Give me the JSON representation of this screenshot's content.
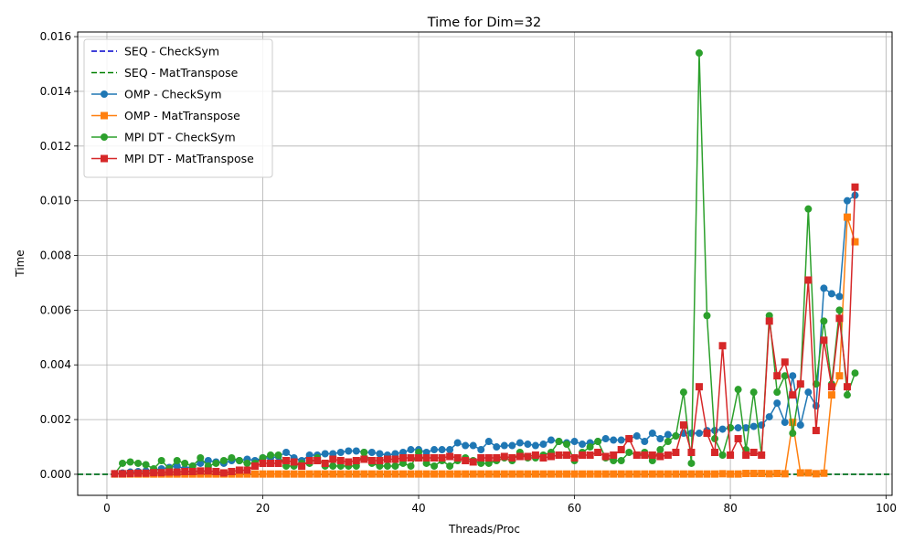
{
  "chart_data": {
    "type": "line",
    "title": "Time for Dim=32",
    "xlabel": "Threads/Proc",
    "ylabel": "Time",
    "xlim": [
      -3.75,
      100.75
    ],
    "ylim": [
      -0.00077,
      0.01617
    ],
    "xticks": [
      0,
      20,
      40,
      60,
      80,
      100
    ],
    "xtick_labels": [
      "0",
      "20",
      "40",
      "60",
      "80",
      "100"
    ],
    "yticks": [
      0,
      0.002,
      0.004,
      0.006,
      0.008,
      0.01,
      0.012,
      0.014,
      0.016
    ],
    "ytick_labels": [
      "0.000",
      "0.002",
      "0.004",
      "0.006",
      "0.008",
      "0.010",
      "0.012",
      "0.014",
      "0.016"
    ],
    "grid": true,
    "legend_position": "top-left",
    "x": [
      1,
      2,
      3,
      4,
      5,
      6,
      7,
      8,
      9,
      10,
      11,
      12,
      13,
      14,
      15,
      16,
      17,
      18,
      19,
      20,
      21,
      22,
      23,
      24,
      25,
      26,
      27,
      28,
      29,
      30,
      31,
      32,
      33,
      34,
      35,
      36,
      37,
      38,
      39,
      40,
      41,
      42,
      43,
      44,
      45,
      46,
      47,
      48,
      49,
      50,
      51,
      52,
      53,
      54,
      55,
      56,
      57,
      58,
      59,
      60,
      61,
      62,
      63,
      64,
      65,
      66,
      67,
      68,
      69,
      70,
      71,
      72,
      73,
      74,
      75,
      76,
      77,
      78,
      79,
      80,
      81,
      82,
      83,
      84,
      85,
      86,
      87,
      88,
      89,
      90,
      91,
      92,
      93,
      94,
      95,
      96
    ],
    "series": [
      {
        "name": "SEQ - CheckSym",
        "style": "dashed",
        "marker": "none",
        "color": "#0000cc",
        "values": [
          0,
          0,
          0,
          0,
          0,
          0,
          0,
          0,
          0,
          0,
          0,
          0,
          0,
          0,
          0,
          0,
          0,
          0,
          0,
          0,
          0,
          0,
          0,
          0,
          0,
          0,
          0,
          0,
          0,
          0,
          0,
          0,
          0,
          0,
          0,
          0,
          0,
          0,
          0,
          0,
          0,
          0,
          0,
          0,
          0,
          0,
          0,
          0,
          0,
          0,
          0,
          0,
          0,
          0,
          0,
          0,
          0,
          0,
          0,
          0,
          0,
          0,
          0,
          0,
          0,
          0,
          0,
          0,
          0,
          0,
          0,
          0,
          0,
          0,
          0,
          0,
          0,
          0,
          0,
          0,
          0,
          0,
          0,
          0,
          0,
          0,
          0,
          0,
          0,
          0,
          0,
          0,
          0,
          0,
          0,
          0
        ]
      },
      {
        "name": "SEQ - MatTranspose",
        "style": "dashed",
        "marker": "none",
        "color": "#008000",
        "values": [
          0,
          0,
          0,
          0,
          0,
          0,
          0,
          0,
          0,
          0,
          0,
          0,
          0,
          0,
          0,
          0,
          0,
          0,
          0,
          0,
          0,
          0,
          0,
          0,
          0,
          0,
          0,
          0,
          0,
          0,
          0,
          0,
          0,
          0,
          0,
          0,
          0,
          0,
          0,
          0,
          0,
          0,
          0,
          0,
          0,
          0,
          0,
          0,
          0,
          0,
          0,
          0,
          0,
          0,
          0,
          0,
          0,
          0,
          0,
          0,
          0,
          0,
          0,
          0,
          0,
          0,
          0,
          0,
          0,
          0,
          0,
          0,
          0,
          0,
          0,
          0,
          0,
          0,
          0,
          0,
          0,
          0,
          0,
          0,
          0,
          0,
          0,
          0,
          0,
          0,
          0,
          0,
          0,
          0,
          0,
          0
        ]
      },
      {
        "name": "OMP - CheckSym",
        "style": "solid",
        "marker": "circle",
        "color": "#1f77b4",
        "values": [
          2e-05,
          5e-05,
          8e-05,
          0.0001,
          0.00012,
          0.00015,
          0.0002,
          0.00025,
          0.0003,
          0.0002,
          0.0003,
          0.0004,
          0.0005,
          0.00045,
          0.0004,
          0.0005,
          0.0005,
          0.00055,
          0.0005,
          0.0006,
          0.0006,
          0.00065,
          0.0008,
          0.0006,
          0.0005,
          0.0007,
          0.0007,
          0.00075,
          0.00075,
          0.0008,
          0.00085,
          0.00085,
          0.0008,
          0.0008,
          0.00075,
          0.0007,
          0.00075,
          0.0008,
          0.0009,
          0.0009,
          0.0008,
          0.0009,
          0.0009,
          0.0009,
          0.00115,
          0.00105,
          0.00105,
          0.0009,
          0.0012,
          0.001,
          0.00105,
          0.00105,
          0.00115,
          0.0011,
          0.00105,
          0.0011,
          0.00125,
          0.0012,
          0.00115,
          0.0012,
          0.0011,
          0.00115,
          0.0012,
          0.0013,
          0.00125,
          0.00125,
          0.0013,
          0.0014,
          0.0012,
          0.0015,
          0.0013,
          0.00145,
          0.0014,
          0.0015,
          0.0015,
          0.0015,
          0.0016,
          0.0016,
          0.00165,
          0.0017,
          0.0017,
          0.0017,
          0.00175,
          0.0018,
          0.0021,
          0.0026,
          0.0019,
          0.0036,
          0.0018,
          0.003,
          0.0025,
          0.0068,
          0.0066,
          0.0065,
          0.01,
          0.0102
        ]
      },
      {
        "name": "OMP - MatTranspose",
        "style": "solid",
        "marker": "square",
        "color": "#ff7f0e",
        "values": [
          1e-05,
          1e-05,
          1e-05,
          1e-05,
          1e-05,
          1e-05,
          1e-05,
          1e-05,
          1e-05,
          1e-05,
          1e-05,
          1e-05,
          1e-05,
          1e-05,
          1e-05,
          1e-05,
          1e-05,
          1e-05,
          1e-05,
          1e-05,
          1e-05,
          1e-05,
          1e-05,
          1e-05,
          1e-05,
          1e-05,
          1e-05,
          1e-05,
          1e-05,
          1e-05,
          1e-05,
          1e-05,
          1e-05,
          1e-05,
          1e-05,
          1e-05,
          1e-05,
          1e-05,
          1e-05,
          1e-05,
          1e-05,
          1e-05,
          1e-05,
          1e-05,
          1e-05,
          1e-05,
          1e-05,
          1e-05,
          1e-05,
          1e-05,
          1e-05,
          1e-05,
          1e-05,
          1e-05,
          1e-05,
          1e-05,
          1e-05,
          1e-05,
          1e-05,
          1e-05,
          1e-05,
          1e-05,
          1e-05,
          1e-05,
          1e-05,
          1e-05,
          1e-05,
          1e-05,
          1e-05,
          1e-05,
          1e-05,
          1e-05,
          1e-05,
          1e-05,
          1e-05,
          1e-05,
          1e-05,
          1e-05,
          2e-05,
          1e-05,
          1e-05,
          3e-05,
          3e-05,
          3e-05,
          2e-05,
          3e-05,
          2e-05,
          0.0019,
          5e-05,
          5e-05,
          2e-05,
          4e-05,
          0.0029,
          0.0036,
          0.0094,
          0.0085
        ]
      },
      {
        "name": "MPI DT - CheckSym",
        "style": "solid",
        "marker": "circle",
        "color": "#2ca02c",
        "values": [
          2e-05,
          0.0004,
          0.00045,
          0.0004,
          0.00035,
          0.0002,
          0.0005,
          0.0002,
          0.0005,
          0.0004,
          0.0003,
          0.0006,
          0.0003,
          0.0004,
          0.0005,
          0.0006,
          0.0005,
          0.0004,
          0.0004,
          0.0006,
          0.0007,
          0.0007,
          0.0003,
          0.0003,
          0.0004,
          0.0004,
          0.0006,
          0.0003,
          0.0003,
          0.0003,
          0.0003,
          0.0003,
          0.0008,
          0.0004,
          0.0003,
          0.0003,
          0.0003,
          0.0004,
          0.0003,
          0.0008,
          0.0004,
          0.0003,
          0.0005,
          0.0003,
          0.0005,
          0.0006,
          0.0005,
          0.0004,
          0.0004,
          0.0005,
          0.0006,
          0.0005,
          0.0008,
          0.0006,
          0.0006,
          0.0007,
          0.0008,
          0.0012,
          0.0011,
          0.0005,
          0.0008,
          0.001,
          0.0012,
          0.0006,
          0.0005,
          0.0005,
          0.0008,
          0.0007,
          0.0008,
          0.0005,
          0.0009,
          0.0012,
          0.0014,
          0.003,
          0.0004,
          0.0154,
          0.0058,
          0.0013,
          0.0007,
          0.0017,
          0.0031,
          0.0009,
          0.003,
          0.0007,
          0.0058,
          0.003,
          0.0036,
          0.0015,
          0.0033,
          0.0097,
          0.0033,
          0.0056,
          0.0033,
          0.006,
          0.0029,
          0.0037
        ]
      },
      {
        "name": "MPI DT - MatTranspose",
        "style": "solid",
        "marker": "square",
        "color": "#d62728",
        "values": [
          2e-05,
          2e-05,
          3e-05,
          4e-05,
          4e-05,
          6e-05,
          6e-05,
          8e-05,
          8e-05,
          0.0001,
          0.0001,
          0.00012,
          0.00012,
          0.0001,
          5e-05,
          0.0001,
          0.00015,
          0.00015,
          0.0003,
          0.0004,
          0.0004,
          0.0004,
          0.0005,
          0.00045,
          0.0003,
          0.0005,
          0.0005,
          0.0004,
          0.00055,
          0.0005,
          0.00045,
          0.0005,
          0.00055,
          0.0005,
          0.0005,
          0.00055,
          0.00055,
          0.0006,
          0.0006,
          0.0006,
          0.0006,
          0.0006,
          0.0006,
          0.00065,
          0.0006,
          0.0005,
          0.00045,
          0.0006,
          0.0006,
          0.0006,
          0.00065,
          0.0006,
          0.00065,
          0.00065,
          0.0007,
          0.0006,
          0.00065,
          0.0007,
          0.0007,
          0.0006,
          0.0007,
          0.0007,
          0.0008,
          0.00065,
          0.0007,
          0.0009,
          0.0013,
          0.0007,
          0.0007,
          0.0007,
          0.00065,
          0.0007,
          0.0008,
          0.0018,
          0.0008,
          0.0032,
          0.0015,
          0.0008,
          0.0047,
          0.0007,
          0.0013,
          0.0007,
          0.0008,
          0.0007,
          0.0056,
          0.0036,
          0.0041,
          0.0029,
          0.0033,
          0.0071,
          0.0016,
          0.0049,
          0.0032,
          0.0057,
          0.0032,
          0.0105
        ]
      }
    ]
  }
}
